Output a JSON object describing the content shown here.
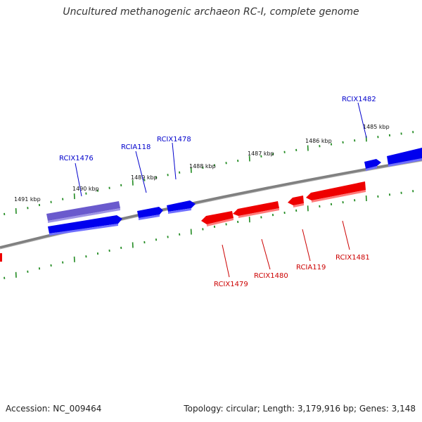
{
  "header": {
    "title": "Uncultured methanogenic archaeon RC-I, complete genome"
  },
  "footer": {
    "accession": "Accession: NC_009464",
    "summary": "Topology: circular; Length: 3,179,916 bp; Genes: 3,148"
  },
  "colors": {
    "forward": "#0000ee",
    "forward_highlight": "#6a5acd",
    "reverse": "#ee0000",
    "backbone": "#808080",
    "ticks": "#228b22",
    "forward_label": "#0000cc",
    "reverse_label": "#cc0000"
  },
  "scale_labels": [
    "1491 kbp",
    "1490 kbp",
    "1489 kbp",
    "1488 kbp",
    "1487 kbp",
    "1486 kbp",
    "1485 kbp"
  ],
  "genes_forward": [
    {
      "label": "RCIX1476",
      "highlight": true
    },
    {
      "label": "RCIA118",
      "highlight": false
    },
    {
      "label": "RCIX1478",
      "highlight": false
    },
    {
      "label": "RCIX1482",
      "highlight": false
    }
  ],
  "genes_reverse": [
    {
      "label": "RCIX1479"
    },
    {
      "label": "RCIX1480"
    },
    {
      "label": "RCIA119"
    },
    {
      "label": "RCIX1481"
    }
  ]
}
